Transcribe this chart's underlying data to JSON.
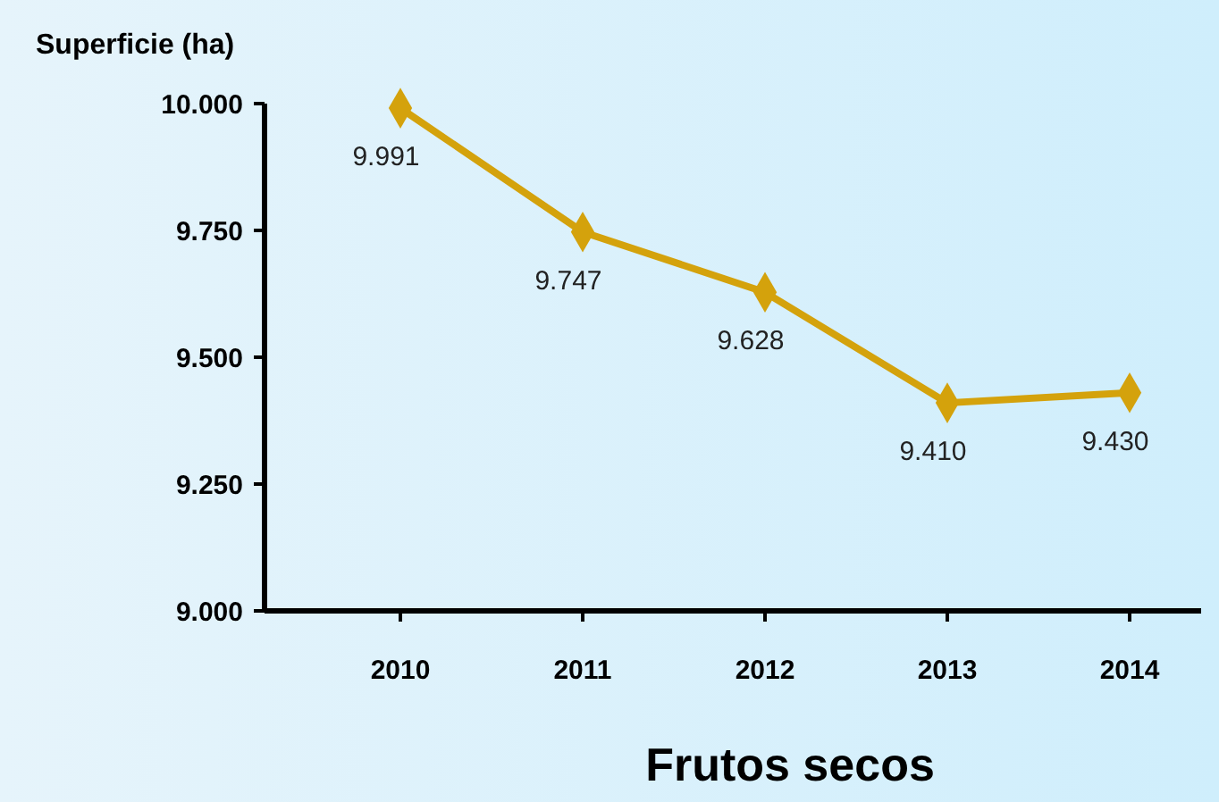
{
  "chart_data": {
    "type": "line",
    "title": "Frutos secos",
    "ylabel": "Superficie (ha)",
    "categories": [
      "2010",
      "2011",
      "2012",
      "2013",
      "2014"
    ],
    "series": [
      {
        "color": "#d4a20c",
        "values": [
          9991,
          9747,
          9628,
          9410,
          9430
        ],
        "value_labels": [
          "9.991",
          "9.747",
          "9.628",
          "9.410",
          "9.430"
        ]
      }
    ],
    "ylim": [
      9000,
      10000
    ],
    "yticks": [
      {
        "value": 9000,
        "label": "9.000"
      },
      {
        "value": 9250,
        "label": "9.250"
      },
      {
        "value": 9500,
        "label": "9.500"
      },
      {
        "value": 9750,
        "label": "9.750"
      },
      {
        "value": 10000,
        "label": "10.000"
      }
    ],
    "marker": "diamond",
    "line_style": "solid"
  }
}
